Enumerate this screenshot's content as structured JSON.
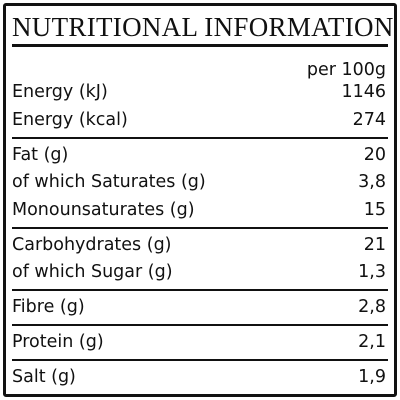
{
  "title": "NUTRITIONAL INFORMATION",
  "column_header": "per 100g",
  "groups": [
    [
      {
        "label": "Energy (kJ)",
        "value": "1146"
      },
      {
        "label": "Energy (kcal)",
        "value": "274"
      }
    ],
    [
      {
        "label": "Fat (g)",
        "value": "20"
      },
      {
        "label": "of which Saturates (g)",
        "value": "3,8"
      },
      {
        "label": "Monounsaturates (g)",
        "value": "15"
      }
    ],
    [
      {
        "label": "Carbohydrates (g)",
        "value": "21"
      },
      {
        "label": "of which Sugar (g)",
        "value": "1,3"
      }
    ],
    [
      {
        "label": "Fibre (g)",
        "value": "2,8"
      }
    ],
    [
      {
        "label": "Protein (g)",
        "value": "2,1"
      }
    ],
    [
      {
        "label": "Salt (g)",
        "value": "1,9"
      }
    ]
  ]
}
